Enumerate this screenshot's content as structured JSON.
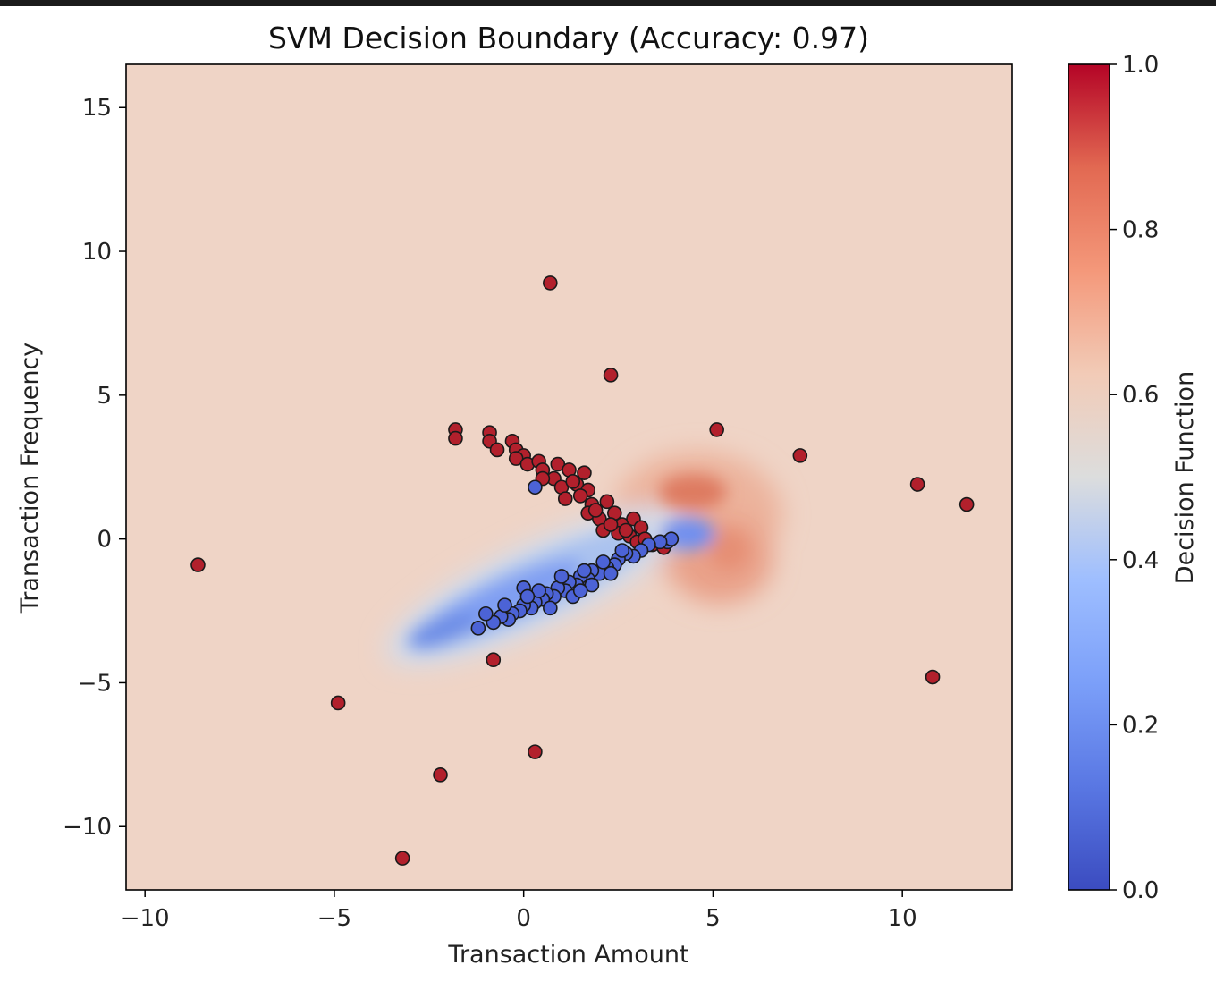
{
  "chart_data": {
    "type": "scatter",
    "title": "SVM Decision Boundary (Accuracy: 0.97)",
    "xlabel": "Transaction Amount",
    "ylabel": "Transaction Frequency",
    "xlim": [
      -10.5,
      12.9
    ],
    "ylim": [
      -12.2,
      16.5
    ],
    "xticks": [
      "−10",
      "−5",
      "0",
      "5",
      "10"
    ],
    "yticks": [
      "−10",
      "−5",
      "0",
      "5",
      "10",
      "15"
    ],
    "xtick_values": [
      -10,
      -5,
      0,
      5,
      10
    ],
    "ytick_values": [
      -10,
      -5,
      0,
      5,
      10,
      15
    ],
    "grid": false,
    "colorbar": {
      "label": "Decision Function",
      "range": [
        0.0,
        1.0
      ],
      "ticks": [
        "0.0",
        "0.2",
        "0.4",
        "0.6",
        "0.8",
        "1.0"
      ],
      "tick_values": [
        0.0,
        0.2,
        0.4,
        0.6,
        0.8,
        1.0
      ],
      "colormap": "coolwarm"
    },
    "background_color": "#efd4c6",
    "series": [
      {
        "color": "#b2202c",
        "points": [
          [
            0.7,
            8.9
          ],
          [
            2.3,
            5.7
          ],
          [
            -8.6,
            -0.9
          ],
          [
            5.1,
            3.8
          ],
          [
            7.3,
            2.9
          ],
          [
            10.4,
            1.9
          ],
          [
            11.7,
            1.2
          ],
          [
            10.8,
            -4.8
          ],
          [
            -0.8,
            -4.2
          ],
          [
            -4.9,
            -5.7
          ],
          [
            0.3,
            -7.4
          ],
          [
            -2.2,
            -8.2
          ],
          [
            -3.2,
            -11.1
          ],
          [
            -1.8,
            3.8
          ],
          [
            -1.8,
            3.5
          ],
          [
            -0.9,
            3.7
          ],
          [
            -0.9,
            3.4
          ],
          [
            -0.7,
            3.1
          ],
          [
            -0.3,
            3.4
          ],
          [
            -0.2,
            3.1
          ],
          [
            0.0,
            2.9
          ],
          [
            -0.2,
            2.8
          ],
          [
            0.1,
            2.6
          ],
          [
            0.4,
            2.7
          ],
          [
            0.5,
            2.4
          ],
          [
            0.9,
            2.6
          ],
          [
            1.2,
            2.4
          ],
          [
            1.6,
            2.3
          ],
          [
            0.8,
            2.1
          ],
          [
            1.0,
            1.8
          ],
          [
            1.4,
            1.9
          ],
          [
            1.7,
            1.7
          ],
          [
            1.1,
            1.4
          ],
          [
            1.5,
            1.5
          ],
          [
            1.8,
            1.2
          ],
          [
            2.2,
            1.3
          ],
          [
            1.7,
            0.9
          ],
          [
            2.0,
            0.7
          ],
          [
            2.4,
            0.9
          ],
          [
            2.6,
            0.5
          ],
          [
            2.9,
            0.7
          ],
          [
            2.1,
            0.3
          ],
          [
            2.5,
            0.2
          ],
          [
            2.8,
            0.1
          ],
          [
            3.1,
            0.4
          ],
          [
            3.0,
            -0.1
          ],
          [
            3.4,
            -0.2
          ],
          [
            3.7,
            -0.3
          ],
          [
            0.5,
            2.1
          ],
          [
            1.3,
            2.0
          ],
          [
            1.9,
            1.0
          ],
          [
            2.3,
            0.5
          ],
          [
            2.7,
            0.3
          ],
          [
            3.2,
            0.0
          ]
        ]
      },
      {
        "color": "#4c63d6",
        "points": [
          [
            0.3,
            1.8
          ],
          [
            3.8,
            -0.1
          ],
          [
            3.9,
            0.0
          ],
          [
            3.6,
            -0.1
          ],
          [
            3.3,
            -0.2
          ],
          [
            3.1,
            -0.4
          ],
          [
            2.9,
            -0.6
          ],
          [
            2.7,
            -0.5
          ],
          [
            2.5,
            -0.7
          ],
          [
            2.4,
            -0.9
          ],
          [
            2.2,
            -1.0
          ],
          [
            2.0,
            -1.2
          ],
          [
            1.8,
            -1.1
          ],
          [
            1.7,
            -1.4
          ],
          [
            1.5,
            -1.3
          ],
          [
            1.4,
            -1.6
          ],
          [
            1.2,
            -1.5
          ],
          [
            1.1,
            -1.8
          ],
          [
            0.9,
            -1.7
          ],
          [
            0.8,
            -2.0
          ],
          [
            0.6,
            -1.9
          ],
          [
            0.5,
            -2.1
          ],
          [
            0.3,
            -2.2
          ],
          [
            0.2,
            -2.4
          ],
          [
            0.0,
            -2.3
          ],
          [
            -0.1,
            -2.5
          ],
          [
            -0.3,
            -2.6
          ],
          [
            -0.4,
            -2.8
          ],
          [
            -0.6,
            -2.7
          ],
          [
            -0.8,
            -2.9
          ],
          [
            -1.0,
            -2.6
          ],
          [
            -1.2,
            -3.1
          ],
          [
            0.0,
            -1.7
          ],
          [
            0.4,
            -1.8
          ],
          [
            1.0,
            -1.3
          ],
          [
            1.6,
            -1.1
          ],
          [
            2.1,
            -0.8
          ],
          [
            2.6,
            -0.4
          ],
          [
            -0.5,
            -2.3
          ],
          [
            0.7,
            -2.4
          ],
          [
            1.3,
            -2.0
          ],
          [
            1.8,
            -1.6
          ],
          [
            2.3,
            -1.2
          ],
          [
            0.1,
            -2.0
          ],
          [
            1.5,
            -1.8
          ]
        ]
      }
    ],
    "decision_regions": {
      "blue_region": "elongated band from (-3.5, -3.5) to (4.5, 0.5)",
      "red_region": "blob around (4.5, 1.5) and (5.5, -0.5)"
    }
  }
}
